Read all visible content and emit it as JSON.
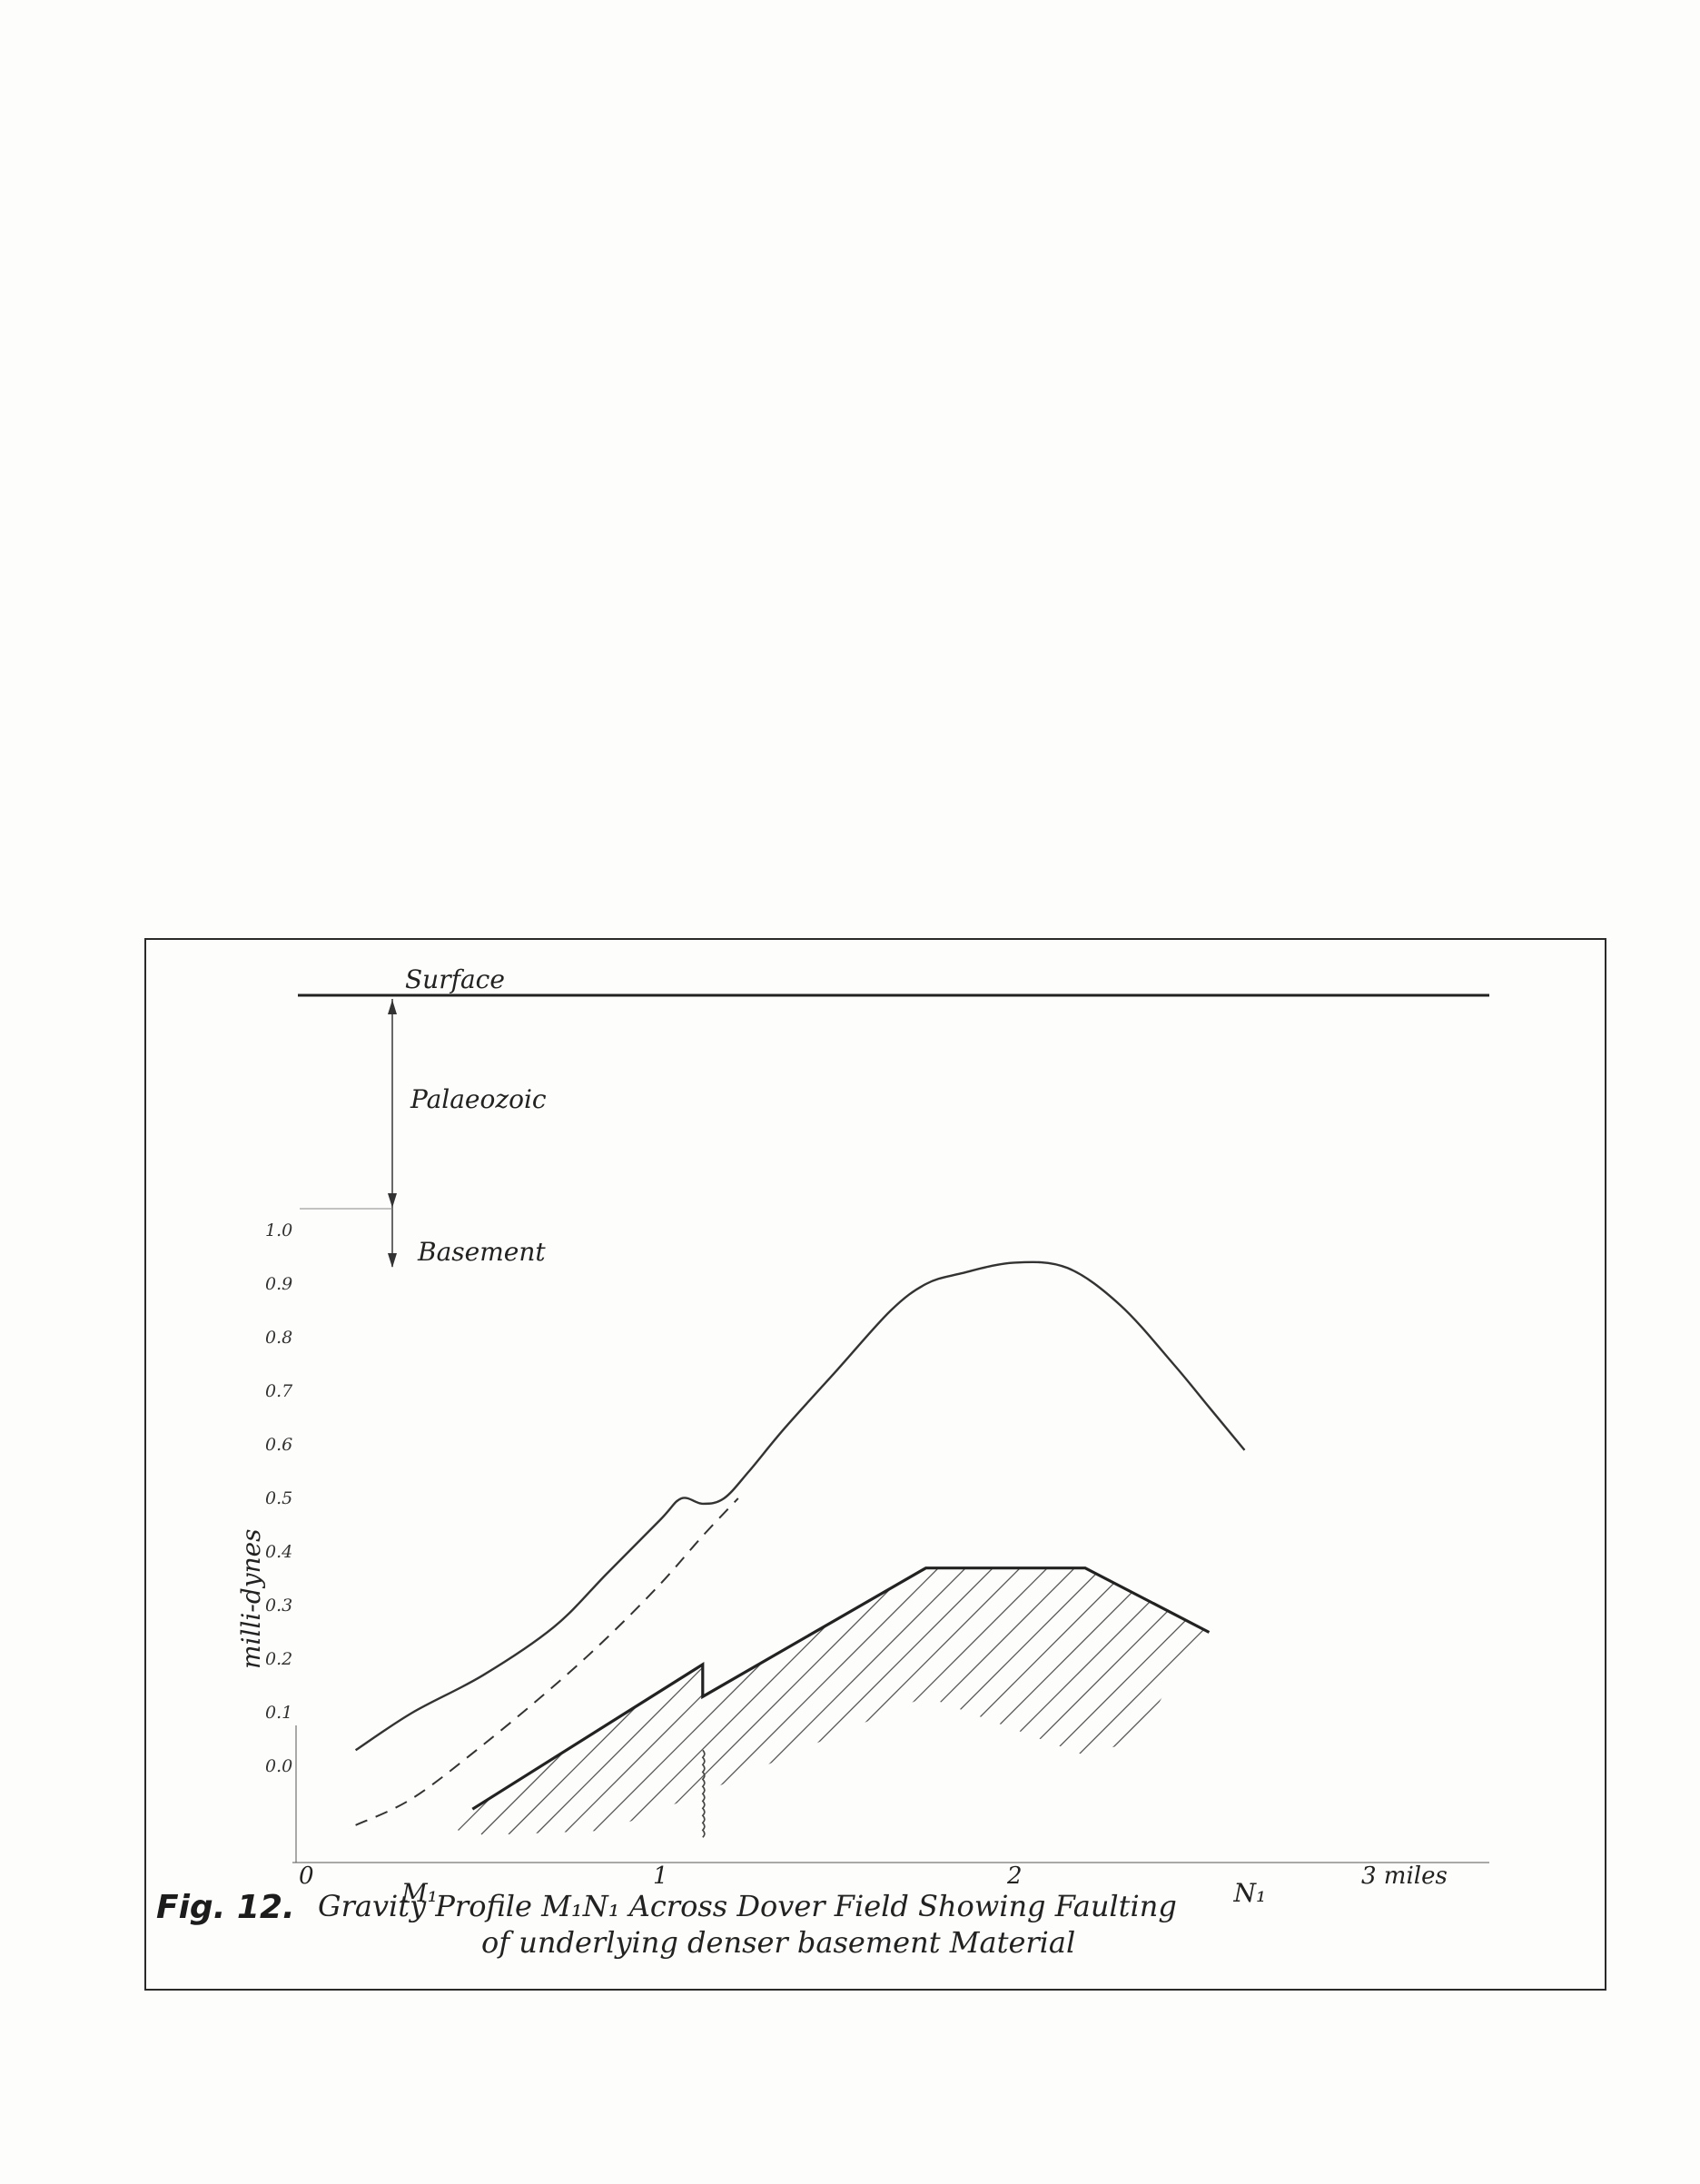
{
  "figure": {
    "surface_label": "Surface",
    "palaeozoic_label": "Palaeozoic",
    "basement_label": "Basement",
    "ylabel": "milli-dynes",
    "caption_fig": "Fig. 12.",
    "caption_line1": "Gravity Profile M₁N₁ Across Dover Field Showing Faulting",
    "caption_line2": "of underlying denser basement Material",
    "point_M": "M₁",
    "point_N": "N₁"
  },
  "chart_data": {
    "type": "line",
    "title": "Gravity Profile M₁N₁ Across Dover Field Showing Faulting of underlying denser basement Material",
    "xlabel": "miles",
    "ylabel": "milli-dynes",
    "x_ticks": [
      "0",
      "1",
      "2",
      "3 miles"
    ],
    "x_tick_values": [
      0,
      1,
      2,
      3
    ],
    "y_ticks": [
      "0.0",
      "0.1",
      "0.2",
      "0.3",
      "0.4",
      "0.5",
      "0.6",
      "0.7",
      "0.8",
      "0.9",
      "1.0"
    ],
    "y_tick_values": [
      0.0,
      0.1,
      0.2,
      0.3,
      0.4,
      0.5,
      0.6,
      0.7,
      0.8,
      0.9,
      1.0
    ],
    "xlim": [
      0,
      3.4
    ],
    "ylim": [
      -0.2,
      1.0
    ],
    "grid": false,
    "series": [
      {
        "style": "solid",
        "x": [
          0.14,
          0.3,
          0.5,
          0.7,
          0.85,
          1.0,
          1.06,
          1.12,
          1.18,
          1.25,
          1.35,
          1.5,
          1.65,
          1.75,
          1.85,
          2.0,
          2.15,
          2.3,
          2.45,
          2.55,
          2.65
        ],
        "y": [
          0.03,
          0.1,
          0.17,
          0.26,
          0.36,
          0.46,
          0.5,
          0.49,
          0.5,
          0.55,
          0.63,
          0.74,
          0.85,
          0.9,
          0.92,
          0.94,
          0.93,
          0.86,
          0.75,
          0.67,
          0.59
        ]
      },
      {
        "style": "dashed",
        "x": [
          0.14,
          0.3,
          0.5,
          0.7,
          0.85,
          1.0,
          1.12,
          1.22
        ],
        "y": [
          -0.11,
          -0.06,
          0.04,
          0.15,
          0.24,
          0.34,
          0.43,
          0.5
        ]
      }
    ],
    "basement": {
      "x": [
        0.47,
        1.12,
        1.12,
        1.75,
        2.2,
        2.55
      ],
      "y": [
        -0.08,
        0.19,
        0.13,
        0.37,
        0.37,
        0.25
      ]
    },
    "fault_x": 1.12,
    "markers": [
      {
        "label": "M₁",
        "x": 0.3
      },
      {
        "label": "N₁",
        "x": 2.65
      }
    ]
  }
}
